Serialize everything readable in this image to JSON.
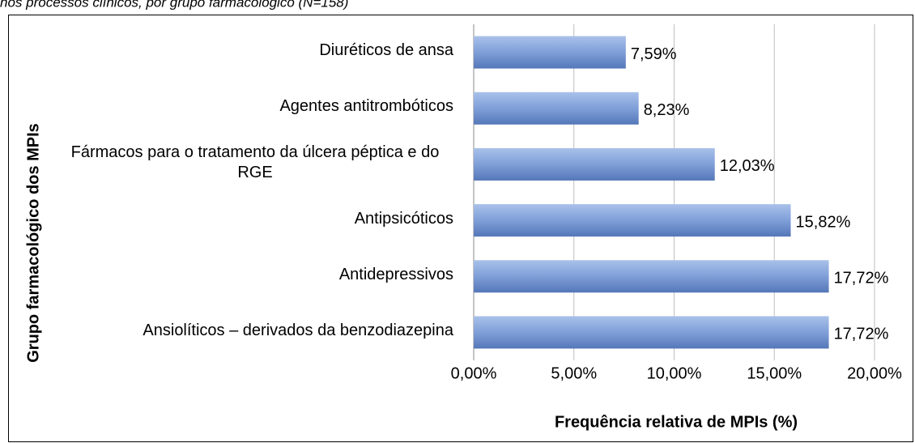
{
  "chart_data": {
    "type": "bar",
    "orientation": "horizontal",
    "caption": "nos processos clínicos, por grupo farmacológico (N=158)",
    "categories": [
      "Diuréticos de ansa",
      "Agentes antitrombóticos",
      "Fármacos para o tratamento da úlcera péptica e do RGE",
      "Antipsicóticos",
      "Antidepressivos",
      "Ansiolíticos – derivados da benzodiazepina"
    ],
    "values": [
      7.59,
      8.23,
      12.03,
      15.82,
      17.72,
      17.72
    ],
    "value_labels": [
      "7,59%",
      "8,23%",
      "12,03%",
      "15,82%",
      "17,72%",
      "17,72%"
    ],
    "color": "#6f8fcc",
    "xlim": [
      0,
      20
    ],
    "xticks": [
      {
        "value": 0,
        "label": "0,00%"
      },
      {
        "value": 5,
        "label": "5,00%"
      },
      {
        "value": 10,
        "label": "10,00%"
      },
      {
        "value": 15,
        "label": "15,00%"
      },
      {
        "value": 20,
        "label": "20,00%"
      }
    ],
    "x_label": "Frequência relativa  de MPIs (%)",
    "y_label": "Grupo farmacológico dos MPIs",
    "grid": true
  }
}
